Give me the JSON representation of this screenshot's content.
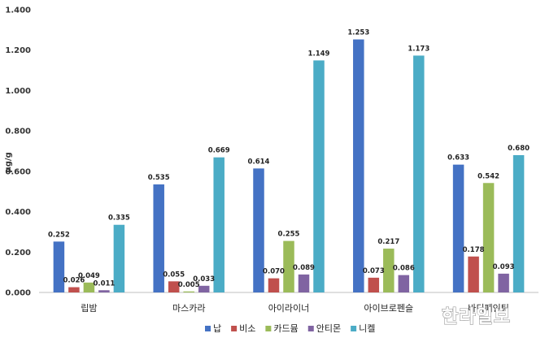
{
  "chart_data": {
    "type": "bar",
    "title": "",
    "xlabel": "",
    "ylabel": "μg/g",
    "ylim": [
      0,
      1.4
    ],
    "yticks": [
      "0.000",
      "0.200",
      "0.400",
      "0.600",
      "0.800",
      "1.000",
      "1.200",
      "1.400"
    ],
    "categories": [
      "립밤",
      "마스카라",
      "아이라이너",
      "아이브로펜슬",
      "바디페인팅"
    ],
    "series": [
      {
        "name": "납",
        "color": "#4472C4",
        "values": [
          0.252,
          0.535,
          0.614,
          1.253,
          0.633
        ],
        "labels": [
          "0.252",
          "0.535",
          "0.614",
          "1.253",
          "0.633"
        ]
      },
      {
        "name": "비소",
        "color": "#C0504D",
        "values": [
          0.026,
          0.055,
          0.07,
          0.073,
          0.178
        ],
        "labels": [
          "0.026",
          "0.055",
          "0.070",
          "0.073",
          "0.178"
        ]
      },
      {
        "name": "카드뮴",
        "color": "#9BBB59",
        "values": [
          0.049,
          0.005,
          0.255,
          0.217,
          0.542
        ],
        "labels": [
          "0.049",
          "0.005",
          "0.255",
          "0.217",
          "0.542"
        ]
      },
      {
        "name": "안티몬",
        "color": "#8064A2",
        "values": [
          0.011,
          0.033,
          0.089,
          0.086,
          0.093
        ],
        "labels": [
          "0.011",
          "0.033",
          "0.089",
          "0.086",
          "0.093"
        ]
      },
      {
        "name": "니켈",
        "color": "#4BACC6",
        "values": [
          0.335,
          0.669,
          1.149,
          1.173,
          0.68
        ],
        "labels": [
          "0.335",
          "0.669",
          "1.149",
          "1.173",
          "0.680"
        ]
      }
    ],
    "grid": false,
    "legend": "bottom"
  },
  "watermark": "한라일보"
}
